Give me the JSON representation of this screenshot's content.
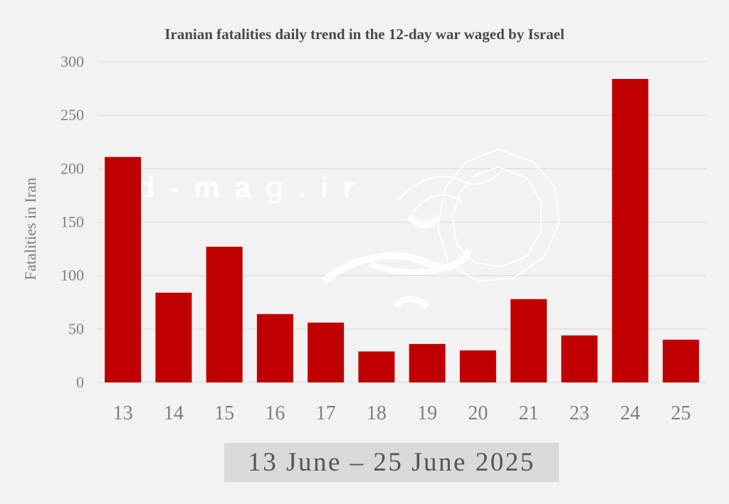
{
  "colors": {
    "bar": "#c00000",
    "axis_text": "#7f7f7f",
    "grid": "#d9d9d9"
  },
  "watermark": {
    "text": "d-mag.ir",
    "logo_icon": "calligraphy-logo-icon"
  },
  "footer": {
    "date_range": "13 June – 25 June 2025"
  },
  "chart_data": {
    "type": "bar",
    "title": "Iranian fatalities daily trend in the 12-day war waged by Israel",
    "xlabel": "",
    "ylabel": "Fatalities in Iran",
    "ylim": [
      0,
      300
    ],
    "yticks": [
      0,
      50,
      100,
      150,
      200,
      250,
      300
    ],
    "grid": true,
    "legend": "none",
    "categories": [
      "13",
      "14",
      "15",
      "16",
      "17",
      "18",
      "19",
      "20",
      "21",
      "23",
      "24",
      "25"
    ],
    "values": [
      211,
      84,
      127,
      64,
      56,
      29,
      36,
      30,
      78,
      44,
      284,
      40
    ]
  }
}
